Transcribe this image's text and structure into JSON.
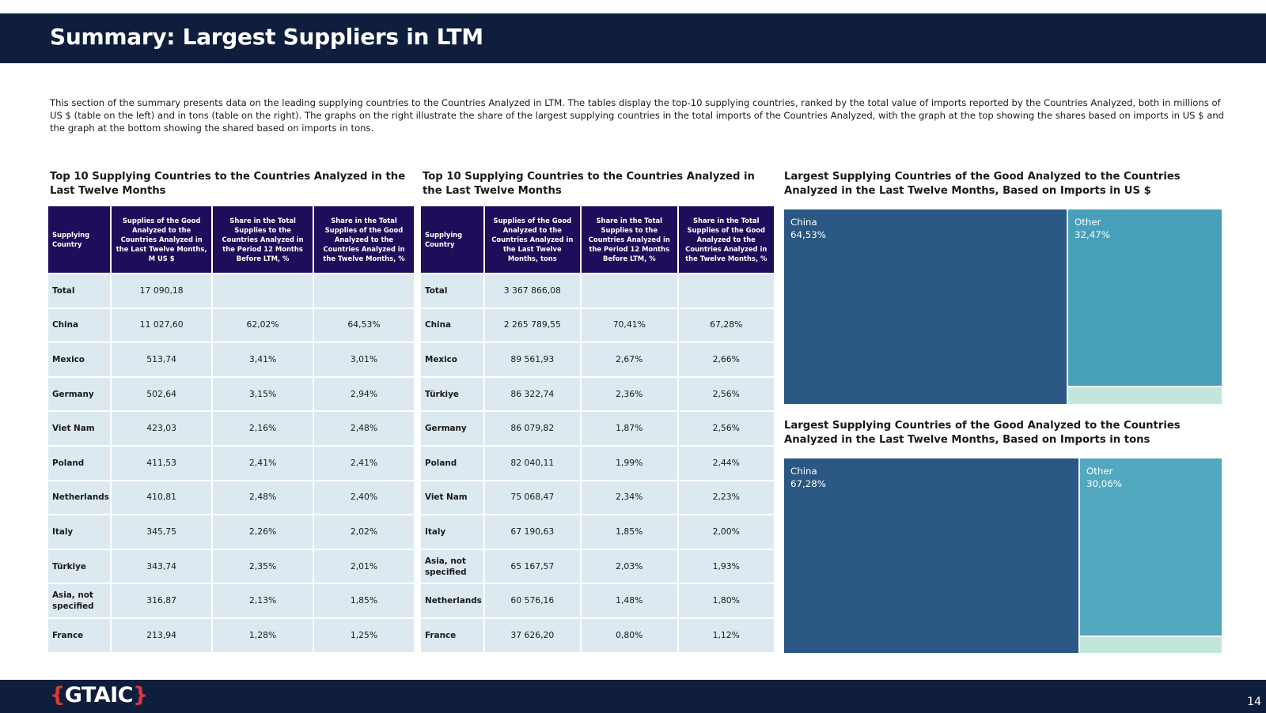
{
  "header": {
    "title": "Summary: Largest Suppliers in LTM"
  },
  "intro": "This section of the summary presents data on the leading supplying countries to the Countries Analyzed in LTM. The tables display the top-10 supplying countries, ranked by the total value of imports reported by the Countries Analyzed, both in millions of US $ (table on the left) and in tons (table on the right). The graphs on the right illustrate the share of the largest supplying countries in the total imports of the Countries Analyzed, with the graph at the top showing the shares based on imports in US $ and the graph at the bottom showing the shared based on imports in tons.",
  "table_usd": {
    "title": "Top 10 Supplying Countries to the Countries Analyzed in the Last Twelve Months",
    "headers": [
      "Supplying Country",
      "Supplies of the Good Analyzed to the Countries Analyzed in the Last Twelve Months, M US $",
      "Share in the Total Supplies to the Countries Analyzed in the Period 12 Months Before LTM, %",
      "Share in the Total Supplies of the Good Analyzed to the Countries Analyzed in the Twelve Months, %"
    ],
    "rows": [
      [
        "Total",
        "17 090,18",
        "",
        ""
      ],
      [
        "China",
        "11 027,60",
        "62,02%",
        "64,53%"
      ],
      [
        "Mexico",
        "513,74",
        "3,41%",
        "3,01%"
      ],
      [
        "Germany",
        "502,64",
        "3,15%",
        "2,94%"
      ],
      [
        "Viet Nam",
        "423,03",
        "2,16%",
        "2,48%"
      ],
      [
        "Poland",
        "411,53",
        "2,41%",
        "2,41%"
      ],
      [
        "Netherlands",
        "410,81",
        "2,48%",
        "2,40%"
      ],
      [
        "Italy",
        "345,75",
        "2,26%",
        "2,02%"
      ],
      [
        "Türkiye",
        "343,74",
        "2,35%",
        "2,01%"
      ],
      [
        "Asia, not specified",
        "316,87",
        "2,13%",
        "1,85%"
      ],
      [
        "France",
        "213,94",
        "1,28%",
        "1,25%"
      ]
    ]
  },
  "table_tons": {
    "title": "Top 10 Supplying Countries to the Countries Analyzed in the Last Twelve Months",
    "headers": [
      "Supplying Country",
      "Supplies of the Good Analyzed to the Countries Analyzed in the Last Twelve Months, tons",
      "Share in the Total Supplies to the Countries Analyzed in the Period 12 Months Before LTM, %",
      "Share in the Total Supplies of the Good Analyzed to the Countries Analyzed in the Twelve Months, %"
    ],
    "rows": [
      [
        "Total",
        "3 367 866,08",
        "",
        ""
      ],
      [
        "China",
        "2 265 789,55",
        "70,41%",
        "67,28%"
      ],
      [
        "Mexico",
        "89 561,93",
        "2,67%",
        "2,66%"
      ],
      [
        "Türkiye",
        "86 322,74",
        "2,36%",
        "2,56%"
      ],
      [
        "Germany",
        "86 079,82",
        "1,87%",
        "2,56%"
      ],
      [
        "Poland",
        "82 040,11",
        "1,99%",
        "2,44%"
      ],
      [
        "Viet Nam",
        "75 068,47",
        "2,34%",
        "2,23%"
      ],
      [
        "Italy",
        "67 190,63",
        "1,85%",
        "2,00%"
      ],
      [
        "Asia, not specified",
        "65 167,57",
        "2,03%",
        "1,93%"
      ],
      [
        "Netherlands",
        "60 576,16",
        "1,48%",
        "1,80%"
      ],
      [
        "France",
        "37 626,20",
        "0,80%",
        "1,12%"
      ]
    ]
  },
  "treemap_usd": {
    "title": "Largest Supplying Countries of the Good Analyzed to the Countries Analyzed in the Last Twelve Months, Based on Imports in US $",
    "items": [
      {
        "label": "China",
        "share_text": "64,53%",
        "share": 64.53,
        "color": "#2a5783"
      },
      {
        "label": "Other",
        "share_text": "32,47%",
        "share": 32.47,
        "color": "#47a0b9"
      },
      {
        "label": "",
        "share_text": "",
        "share": 3.0,
        "color": "#c3e6dc"
      }
    ]
  },
  "treemap_tons": {
    "title": "Largest Supplying Countries of the Good Analyzed to the Countries Analyzed in the Last Twelve Months, Based on Imports in tons",
    "items": [
      {
        "label": "China",
        "share_text": "67,28%",
        "share": 67.28,
        "color": "#2a5783"
      },
      {
        "label": "Other",
        "share_text": "30,06%",
        "share": 30.06,
        "color": "#52a9bf"
      },
      {
        "label": "",
        "share_text": "",
        "share": 2.66,
        "color": "#c3e6dc"
      }
    ]
  },
  "footer": {
    "logo_open": "{",
    "logo_text": "GTAIC",
    "logo_close": "}",
    "page_number": "14"
  }
}
